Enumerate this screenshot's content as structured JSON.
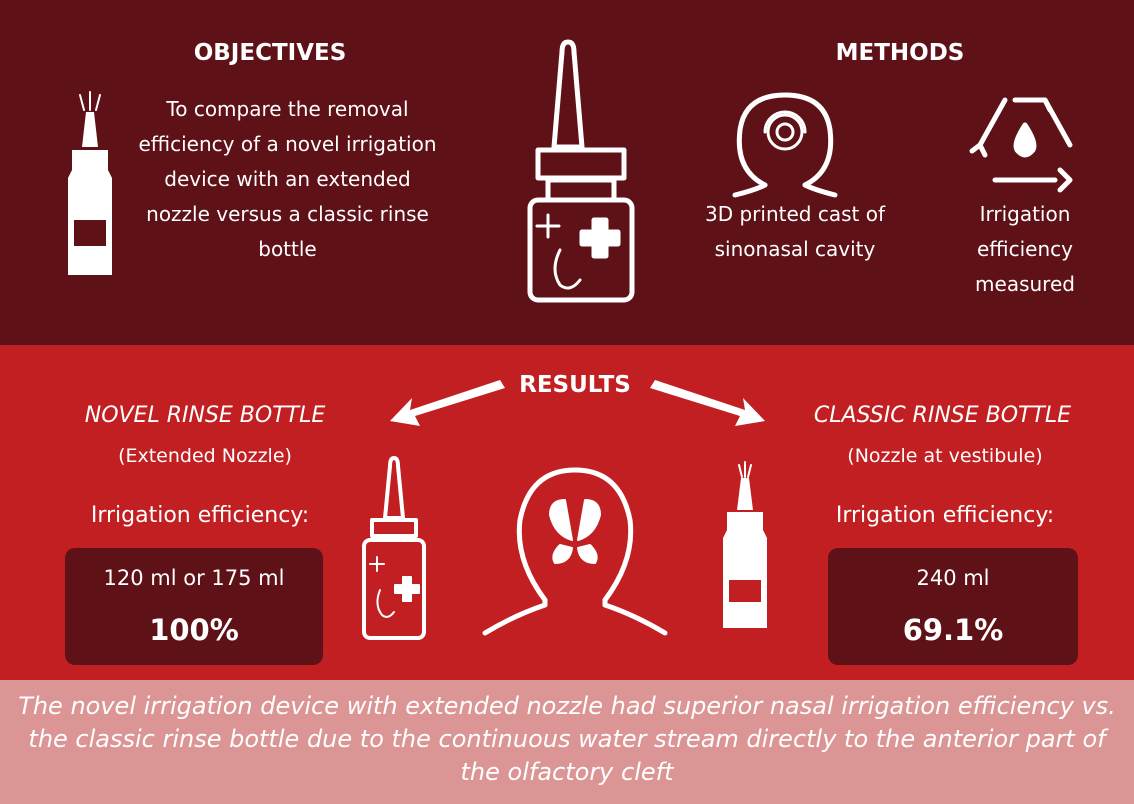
{
  "objectives": {
    "heading": "OBJECTIVES",
    "text": "To compare the removal efficiency of a novel irrigation device with an extended nozzle versus a classic rinse bottle"
  },
  "methods": {
    "heading": "METHODS",
    "items": [
      "3D printed cast of sinonasal cavity",
      "Irrigation efficiency measured"
    ]
  },
  "results": {
    "heading": "RESULTS",
    "novel": {
      "title": "NOVEL RINSE BOTTLE",
      "subtitle": "(Extended Nozzle)",
      "label": "Irrigation efficiency:",
      "volume": "120 ml or 175 ml",
      "efficiency": "100%"
    },
    "classic": {
      "title": "CLASSIC RINSE BOTTLE",
      "subtitle": "(Nozzle at vestibule)",
      "label": "Irrigation efficiency:",
      "volume": "240 ml",
      "efficiency": "69.1%"
    }
  },
  "conclusion": "The novel irrigation device with extended nozzle had superior nasal irrigation efficiency vs. the classic rinse bottle due to the continuous water stream directly to the anterior part of the olfactory cleft"
}
